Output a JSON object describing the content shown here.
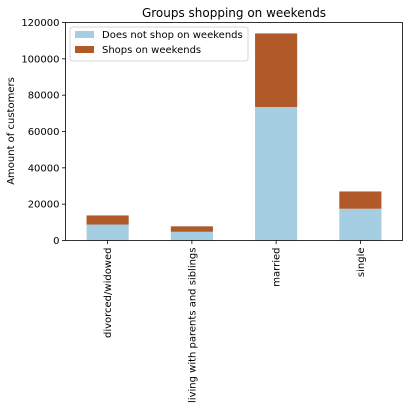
{
  "chart_data": {
    "type": "bar",
    "stacked": true,
    "title": "Groups shopping on weekends",
    "xlabel": "",
    "ylabel": "Amount of customers",
    "categories": [
      "divorced/widowed",
      "living with parents and siblings",
      "married",
      "single"
    ],
    "series": [
      {
        "name": "Does not shop on weekends",
        "color": "#a6cee3",
        "values": [
          8800,
          4800,
          73500,
          17500
        ]
      },
      {
        "name": "Shops on weekends",
        "color": "#b15928",
        "values": [
          5000,
          3000,
          40500,
          9500
        ]
      }
    ],
    "ylim": [
      0,
      120000
    ],
    "yticks": [
      0,
      20000,
      40000,
      60000,
      80000,
      100000,
      120000
    ],
    "grid": false,
    "legend_position": "top-left"
  }
}
